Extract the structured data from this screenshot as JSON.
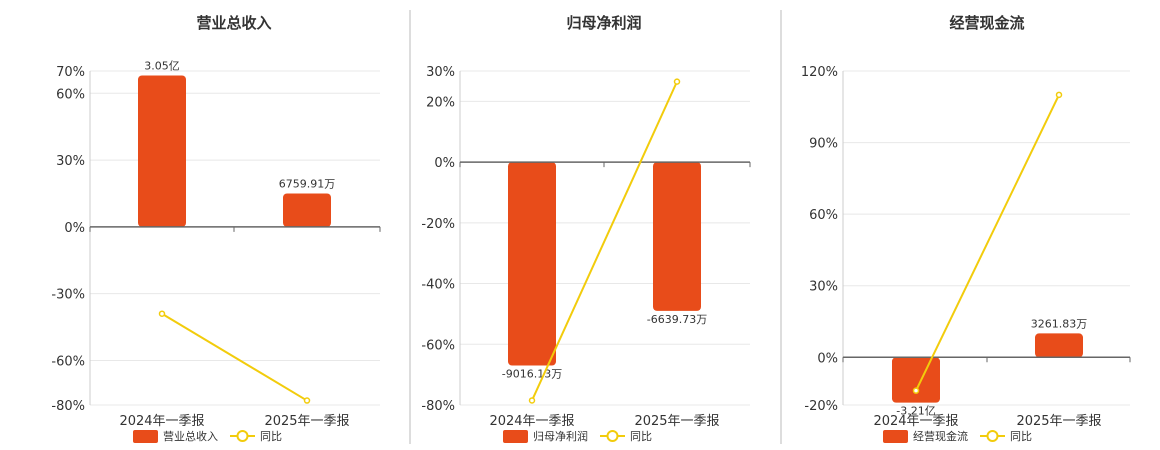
{
  "colors": {
    "bar": "#e84c1a",
    "line": "#f2cc0c",
    "grid": "#e8e8e8",
    "axis": "#666666",
    "divider": "#bbbbbb"
  },
  "chart_data": [
    {
      "type": "bar",
      "title": "营业总收入",
      "categories": [
        "2024年一季报",
        "2025年一季报"
      ],
      "series": [
        {
          "name": "营业总收入",
          "kind": "bar",
          "values": [
            68,
            15
          ],
          "labels": [
            "3.05亿",
            "6759.91万"
          ]
        },
        {
          "name": "同比",
          "kind": "line",
          "values": [
            -39,
            -78
          ]
        }
      ],
      "yticks": [
        70,
        60,
        30,
        0,
        -30,
        -60,
        -80
      ],
      "ylim": [
        -80,
        70
      ],
      "unit": "%",
      "grid": true,
      "legend": "bottom"
    },
    {
      "type": "bar",
      "title": "归母净利润",
      "categories": [
        "2024年一季报",
        "2025年一季报"
      ],
      "series": [
        {
          "name": "归母净利润",
          "kind": "bar",
          "values": [
            -67,
            -49
          ],
          "labels": [
            "-9016.13万",
            "-6639.73万"
          ]
        },
        {
          "name": "同比",
          "kind": "line",
          "values": [
            -78.5,
            26.5
          ]
        }
      ],
      "yticks": [
        30,
        20,
        0,
        -20,
        -40,
        -60,
        -80
      ],
      "ylim": [
        -80,
        30
      ],
      "unit": "%",
      "grid": true,
      "legend": "bottom"
    },
    {
      "type": "bar",
      "title": "经营现金流",
      "categories": [
        "2024年一季报",
        "2025年一季报"
      ],
      "series": [
        {
          "name": "经营现金流",
          "kind": "bar",
          "values": [
            -19,
            10
          ],
          "labels": [
            "-3.21亿",
            "3261.83万"
          ]
        },
        {
          "name": "同比",
          "kind": "line",
          "values": [
            -14,
            110
          ]
        }
      ],
      "yticks": [
        120,
        90,
        60,
        30,
        0,
        -20
      ],
      "ylim": [
        -20,
        120
      ],
      "unit": "%",
      "grid": true,
      "legend": "bottom"
    }
  ]
}
